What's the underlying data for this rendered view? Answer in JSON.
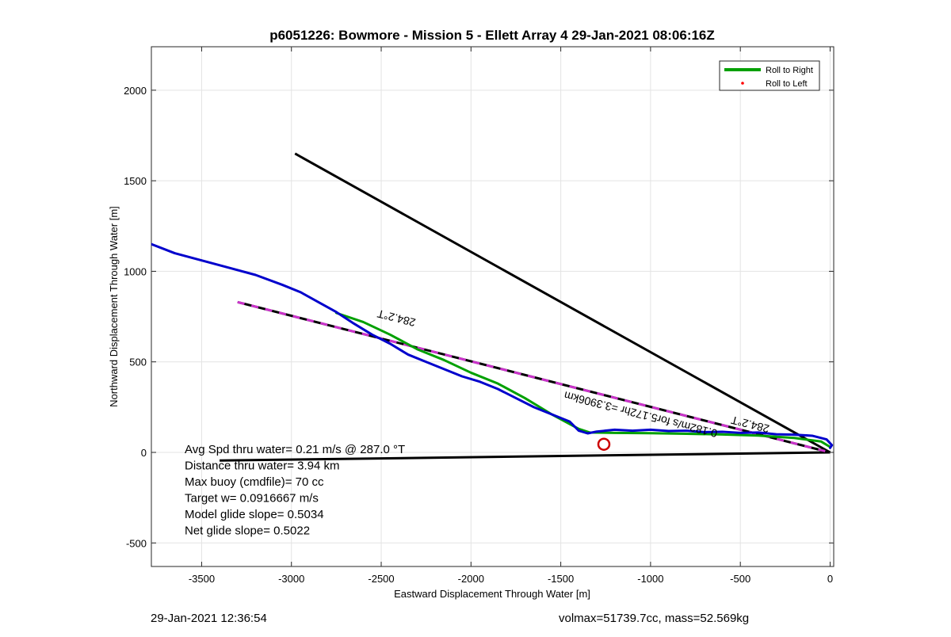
{
  "chart_data": {
    "type": "line",
    "title": "p6051226: Bowmore - Mission 5 - Ellett Array 4 29-Jan-2021 08:06:16Z",
    "xlabel": "Eastward Displacement Through Water [m]",
    "ylabel": "Northward Displacement Through Water [m]",
    "xlim": [
      -3780,
      20
    ],
    "ylim": [
      -630,
      2240
    ],
    "xticks": [
      -3500,
      -3000,
      -2500,
      -2000,
      -1500,
      -1000,
      -500,
      0
    ],
    "yticks": [
      -500,
      0,
      500,
      1000,
      1500,
      2000
    ],
    "grid": true,
    "legend_position": "top-right",
    "legend": [
      {
        "label": "Roll to Right",
        "color": "#00a000",
        "style": "line"
      },
      {
        "label": "Roll to Left",
        "color": "#ff0000",
        "style": "dot"
      }
    ],
    "series": [
      {
        "name": "Roll to Right",
        "color": "#00a000",
        "x": [
          -2750,
          -2600,
          -2450,
          -2300,
          -2150,
          -2000,
          -1850,
          -1700,
          -1550,
          -1400,
          -1340,
          -1200,
          -1000,
          -800,
          -600,
          -400,
          -200,
          -50,
          0
        ],
        "y": [
          770,
          720,
          650,
          570,
          510,
          440,
          380,
          300,
          210,
          130,
          110,
          108,
          106,
          103,
          99,
          93,
          80,
          60,
          30
        ]
      },
      {
        "name": "",
        "color": "#0000cc",
        "x": [
          -3780,
          -3650,
          -3500,
          -3350,
          -3200,
          -3050,
          -2950,
          -2850,
          -2750,
          -2650,
          -2550,
          -2450,
          -2350,
          -2250,
          -2150,
          -2050,
          -1950,
          -1850,
          -1750,
          -1650,
          -1550,
          -1450,
          -1400,
          -1350,
          -1300,
          -1200,
          -1100,
          -1000,
          -900,
          -800,
          -700,
          -600,
          -500,
          -400,
          -300,
          -200,
          -100,
          -20,
          10,
          0
        ],
        "y": [
          1150,
          1100,
          1060,
          1020,
          980,
          925,
          885,
          830,
          775,
          710,
          650,
          600,
          540,
          500,
          460,
          420,
          390,
          350,
          300,
          250,
          210,
          170,
          120,
          105,
          115,
          125,
          120,
          125,
          118,
          120,
          112,
          114,
          108,
          110,
          100,
          98,
          92,
          72,
          40,
          25
        ]
      }
    ],
    "reference_lines": [
      {
        "name": "",
        "color": "#000000",
        "x": [
          -2980,
          0
        ],
        "y": [
          1650,
          0
        ]
      },
      {
        "name": "",
        "color": "#000000",
        "x": [
          -3400,
          0
        ],
        "y": [
          -45,
          0
        ]
      },
      {
        "name": "",
        "color": "#000000",
        "dash_color": "#cc33cc",
        "x": [
          -3300,
          0
        ],
        "y": [
          830,
          0
        ]
      }
    ],
    "markers": [
      {
        "name": "",
        "shape": "circle",
        "color": "#cc0000",
        "x": -1260,
        "y": 45
      }
    ],
    "annotations": [
      {
        "text": "284.2°T",
        "x": -2410,
        "y": 762,
        "rotation": 194.2
      },
      {
        "text": "284.2°T",
        "x": -440,
        "y": 175,
        "rotation": 194.2
      },
      {
        "text": "0.182m/s for5.172hr =3.3906km",
        "x": -1050,
        "y": 230,
        "rotation": 194.2
      }
    ],
    "stats": [
      "Avg Spd thru water=  0.21 m/s @ 287.0 °T",
      "Distance thru water=  3.94 km",
      "Max buoy (cmdfile)= 70 cc",
      "Target w= 0.0916667 m/s",
      "Model glide slope= 0.5034",
      "Net glide slope= 0.5022"
    ]
  },
  "footer": {
    "timestamp": "29-Jan-2021 12:36:54",
    "volume_mass": "volmax=51739.7cc, mass=52.569kg"
  }
}
